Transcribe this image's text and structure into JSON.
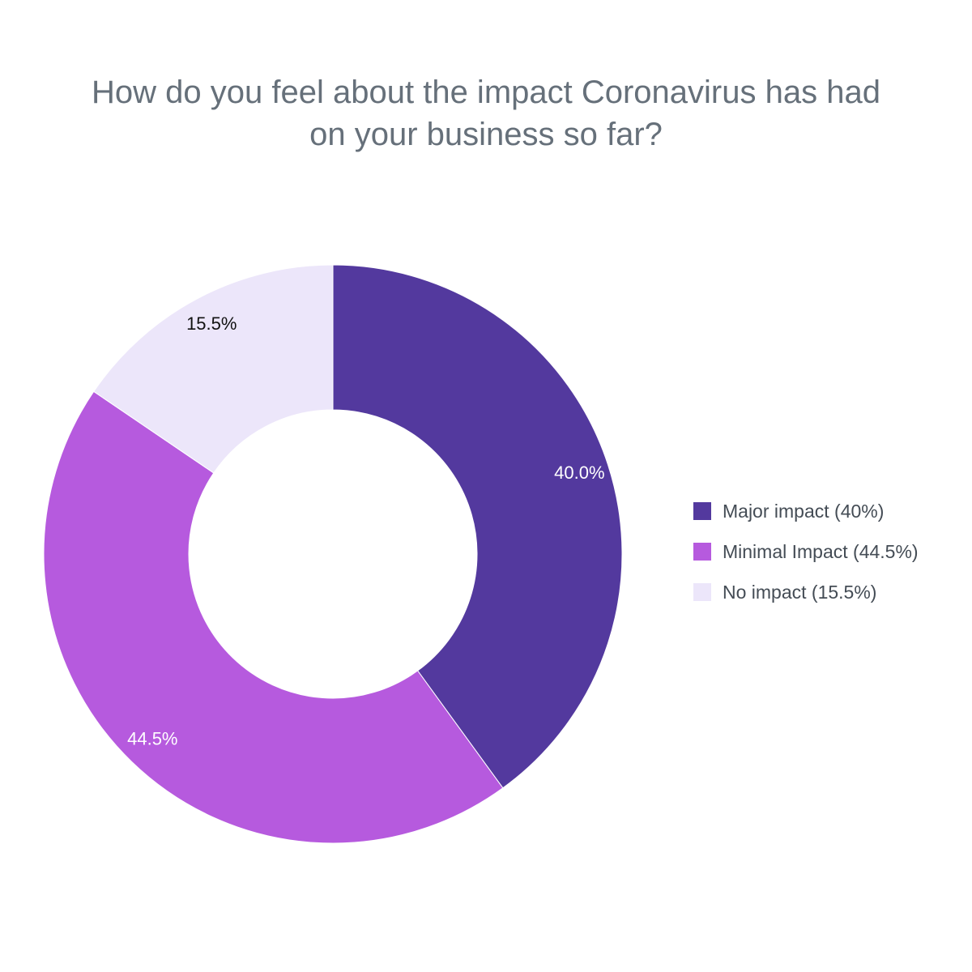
{
  "chart_data": {
    "type": "pie",
    "title_lines": [
      "How do you feel about the impact Coronavirus has had",
      "on your business so far?"
    ],
    "slices": [
      {
        "name": "Major impact (40%)",
        "value": 40.0,
        "label": "40.0%",
        "color": "#53399e",
        "label_color": "#ffffff"
      },
      {
        "name": "Minimal Impact (44.5%)",
        "value": 44.5,
        "label": "44.5%",
        "color": "#b65ade",
        "label_color": "#ffffff"
      },
      {
        "name": "No impact (15.5%)",
        "value": 15.5,
        "label": "15.5%",
        "color": "#ece6fa",
        "label_color": "#111111"
      }
    ],
    "donut": true,
    "start_angle": "12 o'clock",
    "direction": "clockwise",
    "legend_position": "right"
  }
}
